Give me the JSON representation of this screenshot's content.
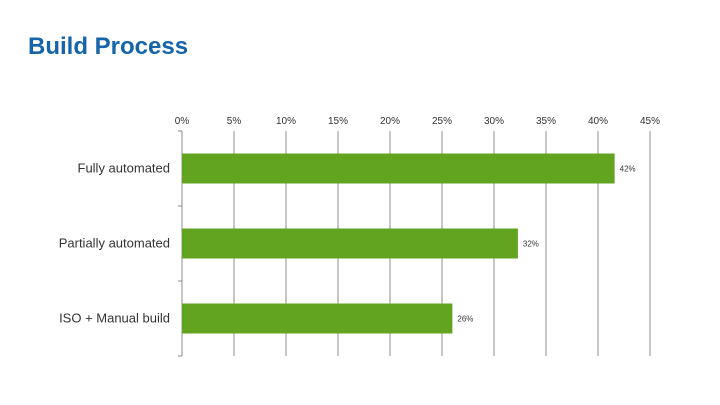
{
  "slide": {
    "title": "Build Process"
  },
  "chart_data": {
    "type": "bar",
    "orientation": "horizontal",
    "categories": [
      "Fully automated",
      "Partially automated",
      "ISO + Manual build"
    ],
    "values": [
      41.6,
      32.3,
      26.0
    ],
    "data_labels": [
      "42%",
      "32%",
      "26%"
    ],
    "xlim": [
      0,
      45
    ],
    "x_ticks": [
      0,
      5,
      10,
      15,
      20,
      25,
      30,
      35,
      40,
      45
    ],
    "x_tick_labels": [
      "0%",
      "5%",
      "10%",
      "15%",
      "20%",
      "25%",
      "30%",
      "35%",
      "40%",
      "45%"
    ],
    "x_axis_position": "top",
    "grid": "vertical",
    "legend": "none",
    "bar_color": "#62a420",
    "gridline_color": "#8c8c8c",
    "title": "",
    "xlabel": "",
    "ylabel": ""
  }
}
